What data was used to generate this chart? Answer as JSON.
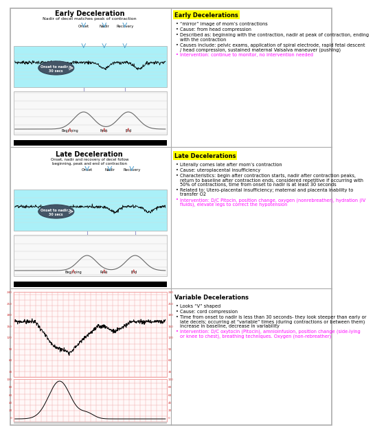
{
  "bg_color": "#ffffff",
  "s1_bullets": [
    "“mirror” image of mom’s contractions",
    "Cause: from head compression",
    "Described as: beginning with the contraction, nadir at peak of contraction, ending with the contraction",
    "Causes include: pelvic exams, application of spiral electrode, rapid fetal descent / head compression, sustained maternal Valsalva maneuver (pushing)"
  ],
  "s1_intervention": "Intervention: continue to monitor, no intervention needed",
  "s2_bullets": [
    "Literally comes late after mom’s contraction",
    "Cause: uteroplacental insufficiency",
    "Characteristics: begin after contraction starts, nadir after contraction peaks, return to baseline after contraction ends, considered repetitive if occurring with 50% of contractions, time from onset to nadir is at least 30 seconds",
    "Related to: Utero-placental insufficiency; maternal and placenta inability to transfer O2"
  ],
  "s2_intervention": "Intervention: D/C Pitocin, position change, oxygen (nonrebreather), hydration (IV fluids), elevate legs to correct the hypotension",
  "s3_bullets": [
    "Looks “V” shaped",
    "Cause: cord compression",
    "Time from onset to nadir is less than 30 seconds- they look steeper than early or late decels; occurring at “variable” times (during contractions or between them) increase in baseline, decrease in variability"
  ],
  "s3_intervention": "Intervention: D/C oxytocin (Pitocin), amnioinfusion, position change (side-lying or knee to chest), breathing techniques. Oxygen (non-rebreather)",
  "yellow": "#ffff00",
  "magenta": "#ff00ff",
  "cyan_fhr": "#aaf0f8",
  "grid_red": "#f0a0a0",
  "grid_bg": "#fff8f8"
}
